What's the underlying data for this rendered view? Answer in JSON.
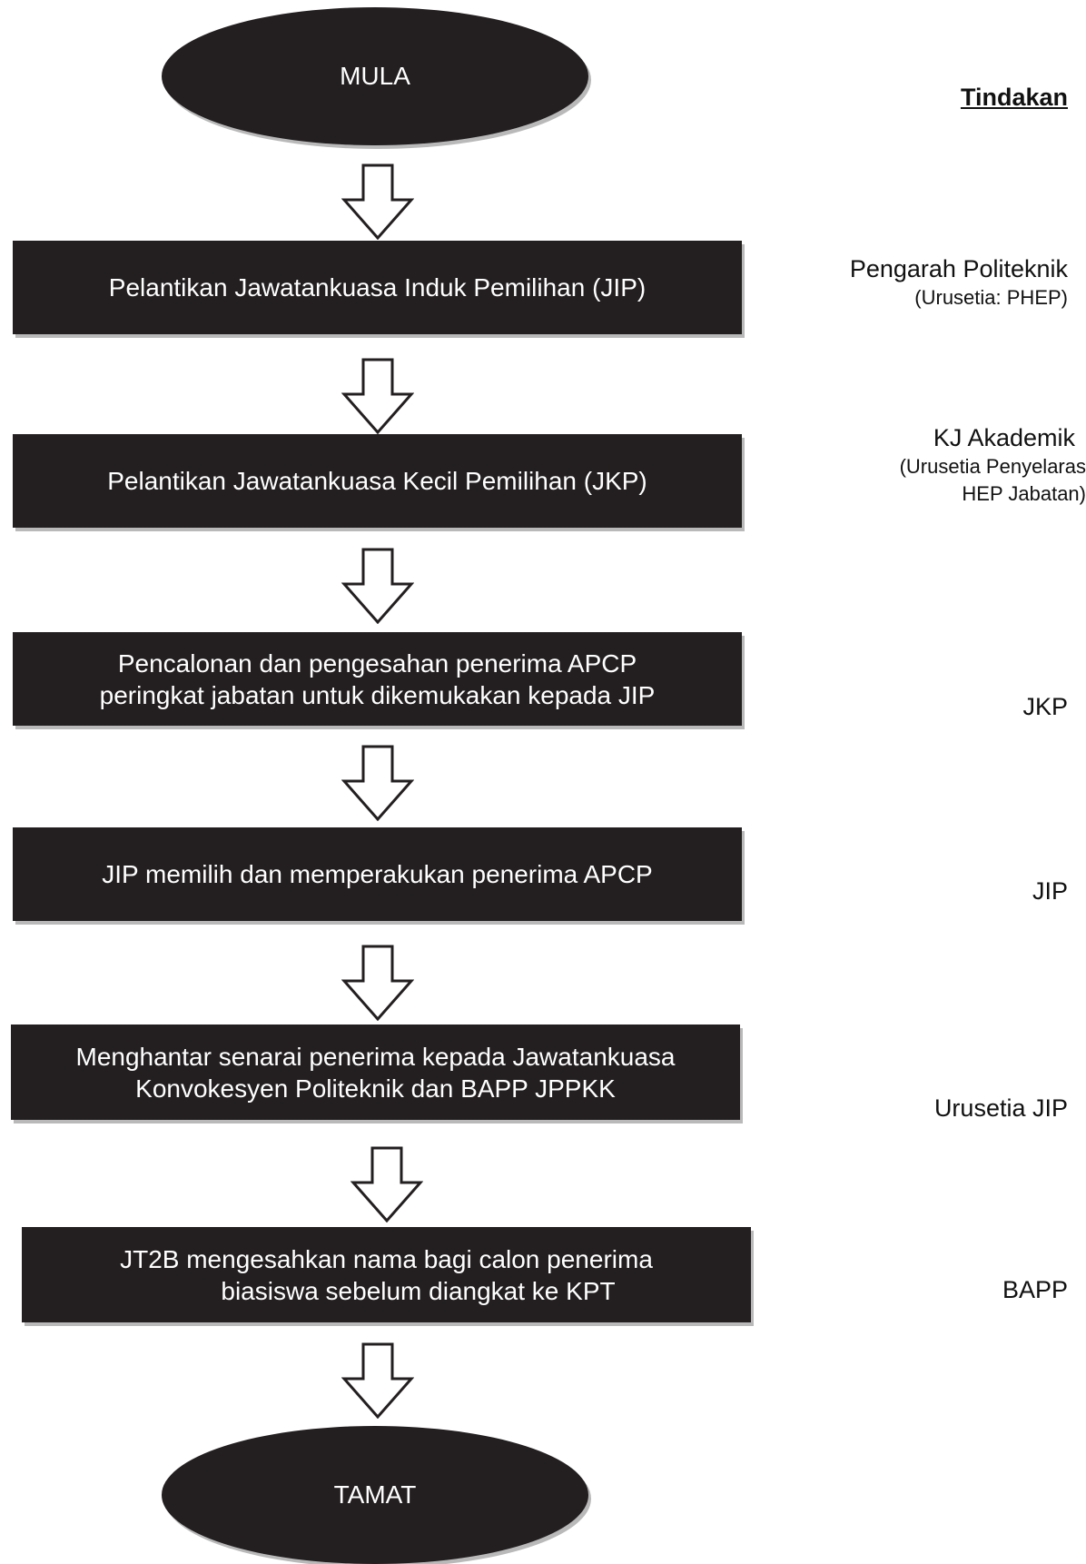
{
  "start": "MULA",
  "end": "TAMAT",
  "actions_heading": "Tindakan",
  "steps": [
    {
      "lines": [
        "Pelantikan Jawatankuasa Induk Pemilihan (JIP)"
      ],
      "action": {
        "main": "Pengarah Politeknik",
        "sub": [
          "(Urusetia: PHEP)"
        ]
      }
    },
    {
      "lines": [
        "Pelantikan Jawatankuasa Kecil Pemilihan (JKP)"
      ],
      "action": {
        "main": "KJ Akademik",
        "sub": [
          "(Urusetia Penyelaras",
          "HEP Jabatan)"
        ]
      }
    },
    {
      "lines": [
        "Pencalonan dan pengesahan penerima APCP",
        "peringkat jabatan untuk dikemukakan kepada JIP"
      ],
      "action": {
        "main": "JKP",
        "sub": []
      }
    },
    {
      "lines": [
        "JIP memilih dan memperakukan penerima APCP"
      ],
      "action": {
        "main": "JIP",
        "sub": []
      }
    },
    {
      "lines": [
        "Menghantar senarai penerima kepada Jawatankuasa",
        "Konvokesyen Politeknik dan BAPP JPPKK"
      ],
      "action": {
        "main": "Urusetia JIP",
        "sub": []
      }
    },
    {
      "lines": [
        "JT2B mengesahkan nama bagi calon penerima",
        "biasiswa sebelum diangkat ke KPT"
      ],
      "action": {
        "main": "BAPP",
        "sub": []
      }
    }
  ]
}
